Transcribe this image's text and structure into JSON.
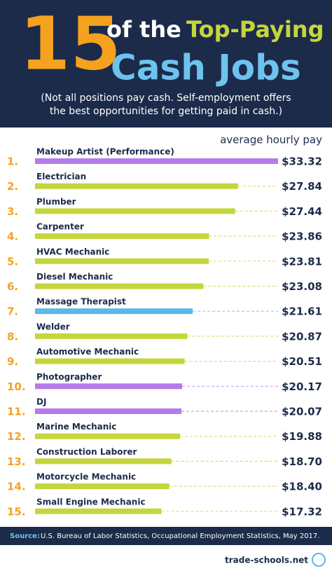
{
  "chart_data": {
    "type": "bar",
    "orientation": "horizontal",
    "title_number": "15",
    "title_part1": "of the",
    "title_part2": "Top-Paying",
    "title_part3": "Cash Jobs",
    "subtitle": [
      "(Not all positions pay cash. Self-employment offers",
      "the best opportunities for getting paid in cash.)"
    ],
    "value_axis_label": "average hourly pay",
    "ranks": [
      "1.",
      "2.",
      "3.",
      "4.",
      "5.",
      "6.",
      "7.",
      "8.",
      "9.",
      "10.",
      "11.",
      "12.",
      "13.",
      "14.",
      "15."
    ],
    "categories": [
      "Makeup Artist (Performance)",
      "Electrician",
      "Plumber",
      "Carpenter",
      "HVAC Mechanic",
      "Diesel Mechanic",
      "Massage Therapist",
      "Welder",
      "Automotive Mechanic",
      "Photographer",
      "DJ",
      "Marine Mechanic",
      "Construction Laborer",
      "Motorcycle Mechanic",
      "Small Engine Mechanic"
    ],
    "values": [
      33.32,
      27.84,
      27.44,
      23.86,
      23.81,
      23.08,
      21.61,
      20.87,
      20.51,
      20.17,
      20.07,
      19.88,
      18.7,
      18.4,
      17.32
    ],
    "value_labels": [
      "$33.32",
      "$27.84",
      "$27.44",
      "$23.86",
      "$23.81",
      "$23.08",
      "$21.61",
      "$20.87",
      "$20.51",
      "$20.17",
      "$20.07",
      "$19.88",
      "$18.70",
      "$18.40",
      "$17.32"
    ],
    "colors": [
      "#b57bea",
      "#c4d63c",
      "#c4d63c",
      "#c4d63c",
      "#c4d63c",
      "#c4d63c",
      "#5bb8e8",
      "#c4d63c",
      "#c4d63c",
      "#b57bea",
      "#b57bea",
      "#c4d63c",
      "#c4d63c",
      "#c4d63c",
      "#c4d63c"
    ],
    "source_label": "Source:",
    "source": "U.S. Bureau of Labor Statistics, Occupational Employment Statistics, May 2017.",
    "brand": "trade-schools.net"
  }
}
